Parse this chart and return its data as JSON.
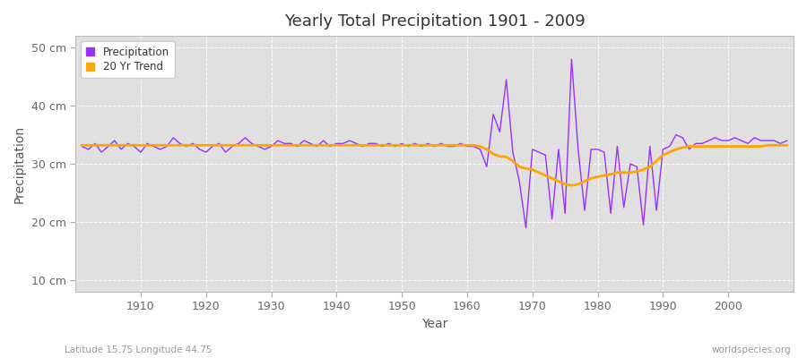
{
  "title": "Yearly Total Precipitation 1901 - 2009",
  "xlabel": "Year",
  "ylabel": "Precipitation",
  "footnote_left": "Latitude 15.75 Longitude 44.75",
  "footnote_right": "worldspecies.org",
  "line_color": "#9B30FF",
  "trend_color": "#FFA500",
  "bg_color": "#FFFFFF",
  "plot_bg_color": "#E0E0E0",
  "grid_color": "#FFFFFF",
  "ylim": [
    8,
    52
  ],
  "yticks": [
    10,
    20,
    30,
    40,
    50
  ],
  "ytick_labels": [
    "10 cm",
    "20 cm",
    "30 cm",
    "40 cm",
    "50 cm"
  ],
  "xlim": [
    1900,
    2010
  ],
  "xticks": [
    1910,
    1920,
    1930,
    1940,
    1950,
    1960,
    1970,
    1980,
    1990,
    2000
  ],
  "years": [
    1901,
    1902,
    1903,
    1904,
    1905,
    1906,
    1907,
    1908,
    1909,
    1910,
    1911,
    1912,
    1913,
    1914,
    1915,
    1916,
    1917,
    1918,
    1919,
    1920,
    1921,
    1922,
    1923,
    1924,
    1925,
    1926,
    1927,
    1928,
    1929,
    1930,
    1931,
    1932,
    1933,
    1934,
    1935,
    1936,
    1937,
    1938,
    1939,
    1940,
    1941,
    1942,
    1943,
    1944,
    1945,
    1946,
    1947,
    1948,
    1949,
    1950,
    1951,
    1952,
    1953,
    1954,
    1955,
    1956,
    1957,
    1958,
    1959,
    1960,
    1961,
    1962,
    1963,
    1964,
    1965,
    1966,
    1967,
    1968,
    1969,
    1970,
    1971,
    1972,
    1973,
    1974,
    1975,
    1976,
    1977,
    1978,
    1979,
    1980,
    1981,
    1982,
    1983,
    1984,
    1985,
    1986,
    1987,
    1988,
    1989,
    1990,
    1991,
    1992,
    1993,
    1994,
    1995,
    1996,
    1997,
    1998,
    1999,
    2000,
    2001,
    2002,
    2003,
    2004,
    2005,
    2006,
    2007,
    2008,
    2009
  ],
  "precip": [
    33.0,
    32.5,
    33.5,
    32.0,
    33.0,
    34.0,
    32.5,
    33.5,
    33.0,
    32.0,
    33.5,
    33.0,
    32.5,
    33.0,
    34.5,
    33.5,
    33.0,
    33.5,
    32.5,
    32.0,
    33.0,
    33.5,
    32.0,
    33.0,
    33.5,
    34.5,
    33.5,
    33.0,
    32.5,
    33.0,
    34.0,
    33.5,
    33.5,
    33.0,
    34.0,
    33.5,
    33.0,
    34.0,
    33.0,
    33.5,
    33.5,
    34.0,
    33.5,
    33.0,
    33.5,
    33.5,
    33.0,
    33.5,
    33.0,
    33.5,
    33.0,
    33.5,
    33.0,
    33.5,
    33.0,
    33.5,
    33.0,
    33.0,
    33.5,
    33.0,
    33.0,
    32.5,
    29.5,
    38.5,
    35.5,
    44.5,
    32.0,
    27.0,
    19.0,
    32.5,
    32.0,
    31.5,
    20.5,
    32.5,
    21.5,
    48.0,
    32.5,
    22.0,
    32.5,
    32.5,
    32.0,
    21.5,
    33.0,
    22.5,
    30.0,
    29.5,
    19.5,
    33.0,
    22.0,
    32.5,
    33.0,
    35.0,
    34.5,
    32.5,
    33.5,
    33.5,
    34.0,
    34.5,
    34.0,
    34.0,
    34.5,
    34.0,
    33.5,
    34.5,
    34.0,
    34.0,
    34.0,
    33.5,
    34.0
  ],
  "trend": [
    33.2,
    33.2,
    33.2,
    33.2,
    33.2,
    33.2,
    33.2,
    33.2,
    33.2,
    33.2,
    33.2,
    33.2,
    33.2,
    33.2,
    33.2,
    33.2,
    33.2,
    33.2,
    33.2,
    33.2,
    33.2,
    33.2,
    33.2,
    33.2,
    33.2,
    33.2,
    33.2,
    33.2,
    33.2,
    33.2,
    33.2,
    33.2,
    33.2,
    33.2,
    33.2,
    33.2,
    33.2,
    33.2,
    33.2,
    33.2,
    33.2,
    33.2,
    33.2,
    33.2,
    33.2,
    33.2,
    33.2,
    33.2,
    33.2,
    33.2,
    33.2,
    33.2,
    33.2,
    33.2,
    33.2,
    33.2,
    33.2,
    33.2,
    33.2,
    33.2,
    33.2,
    33.0,
    32.5,
    31.7,
    31.3,
    31.2,
    30.5,
    29.5,
    29.2,
    29.0,
    28.5,
    28.0,
    27.5,
    27.0,
    26.5,
    26.3,
    26.5,
    27.0,
    27.5,
    27.8,
    28.0,
    28.2,
    28.5,
    28.5,
    28.5,
    28.7,
    29.0,
    29.5,
    30.5,
    31.5,
    32.0,
    32.5,
    32.8,
    33.0,
    33.0,
    33.0,
    33.0,
    33.0,
    33.0,
    33.0,
    33.0,
    33.0,
    33.0,
    33.0,
    33.0,
    33.2,
    33.2,
    33.2,
    33.2
  ],
  "legend_entries": [
    "Precipitation",
    "20 Yr Trend"
  ]
}
